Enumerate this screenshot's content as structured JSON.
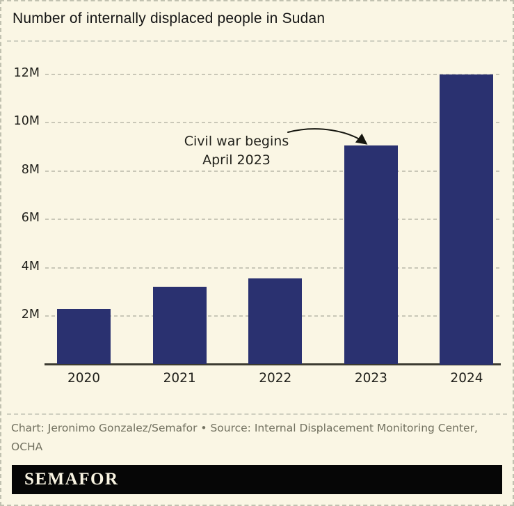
{
  "title": "Number of internally displaced people in Sudan",
  "chart_data": {
    "type": "bar",
    "title": "Number of internally displaced people in Sudan",
    "categories": [
      "2020",
      "2021",
      "2022",
      "2023",
      "2024"
    ],
    "values": [
      2.3,
      3.2,
      3.55,
      9.05,
      12.0
    ],
    "unit": "millions of people",
    "xlabel": "",
    "ylabel": "",
    "ylim": [
      0,
      12.6
    ],
    "yticks": [
      2,
      4,
      6,
      8,
      10,
      12
    ],
    "ytick_labels": [
      "2M",
      "4M",
      "6M",
      "8M",
      "10M",
      "12M"
    ],
    "grid": "horizontal-dashed",
    "legend": "none",
    "bar_color": "#2a3170",
    "annotation": {
      "line1": "Civil war begins",
      "line2": "April 2023",
      "points_to_category": "2023"
    }
  },
  "annotation": {
    "line1": "Civil war begins",
    "line2": "April 2023"
  },
  "footer": {
    "credit": "Chart: Jeronimo Gonzalez/Semafor • Source: Internal Displacement Monitoring Center, OCHA",
    "logo": "SEMAFOR"
  },
  "colors": {
    "background": "#faf6e4",
    "bar": "#2a3170",
    "gridline": "#c9c7b7",
    "axis": "#3c3b31",
    "title_text": "#141414",
    "credit_text": "#71705f",
    "logo_background": "#060606",
    "logo_text": "#f8f3e1"
  }
}
